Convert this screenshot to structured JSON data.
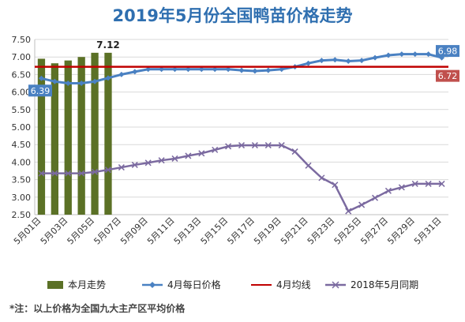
{
  "footnote": "*注：以上价格为全国九大主产区平均价格",
  "colors": {
    "bar": "#5b7126",
    "april": "#4a81c2",
    "april_avg": "#c00000",
    "last_year": "#7b6aa0",
    "title": "#2f6fb0",
    "label_blue_bg": "#4a81c2",
    "label_red_bg": "#c0504d"
  },
  "chart_data": {
    "type": "bar+line",
    "title": "2019年5月份全国鸭苗价格走势",
    "ylim": [
      2.5,
      7.5
    ],
    "yticks": [
      "2.50",
      "3.00",
      "3.50",
      "4.00",
      "4.50",
      "5.00",
      "5.50",
      "6.00",
      "6.50",
      "7.00",
      "7.50"
    ],
    "categories": [
      "5月01日",
      "5月02日",
      "5月03日",
      "5月04日",
      "5月05日",
      "5月06日",
      "5月07日",
      "5月08日",
      "5月09日",
      "5月10日",
      "5月11日",
      "5月12日",
      "5月13日",
      "5月14日",
      "5月15日",
      "5月16日",
      "5月17日",
      "5月18日",
      "5月19日",
      "5月20日",
      "5月21日",
      "5月22日",
      "5月23日",
      "5月24日",
      "5月25日",
      "5月26日",
      "5月27日",
      "5月28日",
      "5月29日",
      "5月30日",
      "5月31日"
    ],
    "xtick_labels": [
      "5月01日",
      "5月03日",
      "5月05日",
      "5月07日",
      "5月09日",
      "5月11日",
      "5月13日",
      "5月15日",
      "5月17日",
      "5月19日",
      "5月21日",
      "5月23日",
      "5月25日",
      "5月27日",
      "5月29日",
      "5月31日"
    ],
    "grid": true,
    "legend_position": "bottom",
    "series": [
      {
        "name": "本月走势",
        "type": "bar",
        "values": [
          6.95,
          6.82,
          6.9,
          7.0,
          7.12,
          7.12,
          null,
          null,
          null,
          null,
          null,
          null,
          null,
          null,
          null,
          null,
          null,
          null,
          null,
          null,
          null,
          null,
          null,
          null,
          null,
          null,
          null,
          null,
          null,
          null,
          null
        ]
      },
      {
        "name": "4月每日价格",
        "type": "line",
        "values": [
          6.39,
          6.3,
          6.25,
          6.25,
          6.3,
          6.4,
          6.5,
          6.58,
          6.65,
          6.65,
          6.65,
          6.65,
          6.65,
          6.65,
          6.65,
          6.62,
          6.6,
          6.62,
          6.65,
          6.72,
          6.82,
          6.9,
          6.92,
          6.88,
          6.9,
          6.98,
          7.05,
          7.08,
          7.08,
          7.08,
          6.98
        ]
      },
      {
        "name": "4月均线",
        "type": "line",
        "values": [
          6.72,
          6.72,
          6.72,
          6.72,
          6.72,
          6.72,
          6.72,
          6.72,
          6.72,
          6.72,
          6.72,
          6.72,
          6.72,
          6.72,
          6.72,
          6.72,
          6.72,
          6.72,
          6.72,
          6.72,
          6.72,
          6.72,
          6.72,
          6.72,
          6.72,
          6.72,
          6.72,
          6.72,
          6.72,
          6.72,
          6.72
        ]
      },
      {
        "name": "2018年5月同期",
        "type": "line",
        "values": [
          3.68,
          3.68,
          3.68,
          3.68,
          3.72,
          3.78,
          3.85,
          3.92,
          3.98,
          4.05,
          4.1,
          4.18,
          4.25,
          4.35,
          4.45,
          4.48,
          4.48,
          4.48,
          4.48,
          4.3,
          3.9,
          3.55,
          3.35,
          2.6,
          2.78,
          2.98,
          3.18,
          3.28,
          3.38,
          3.38,
          3.38
        ]
      }
    ],
    "data_labels": [
      {
        "series": "本月走势",
        "index": 5,
        "text": "7.12"
      },
      {
        "series": "4月每日价格",
        "index": 0,
        "text": "6.39"
      },
      {
        "series": "4月每日价格",
        "index": 30,
        "text": "6.98"
      },
      {
        "series": "4月均线",
        "index": 30,
        "text": "6.72"
      }
    ]
  }
}
